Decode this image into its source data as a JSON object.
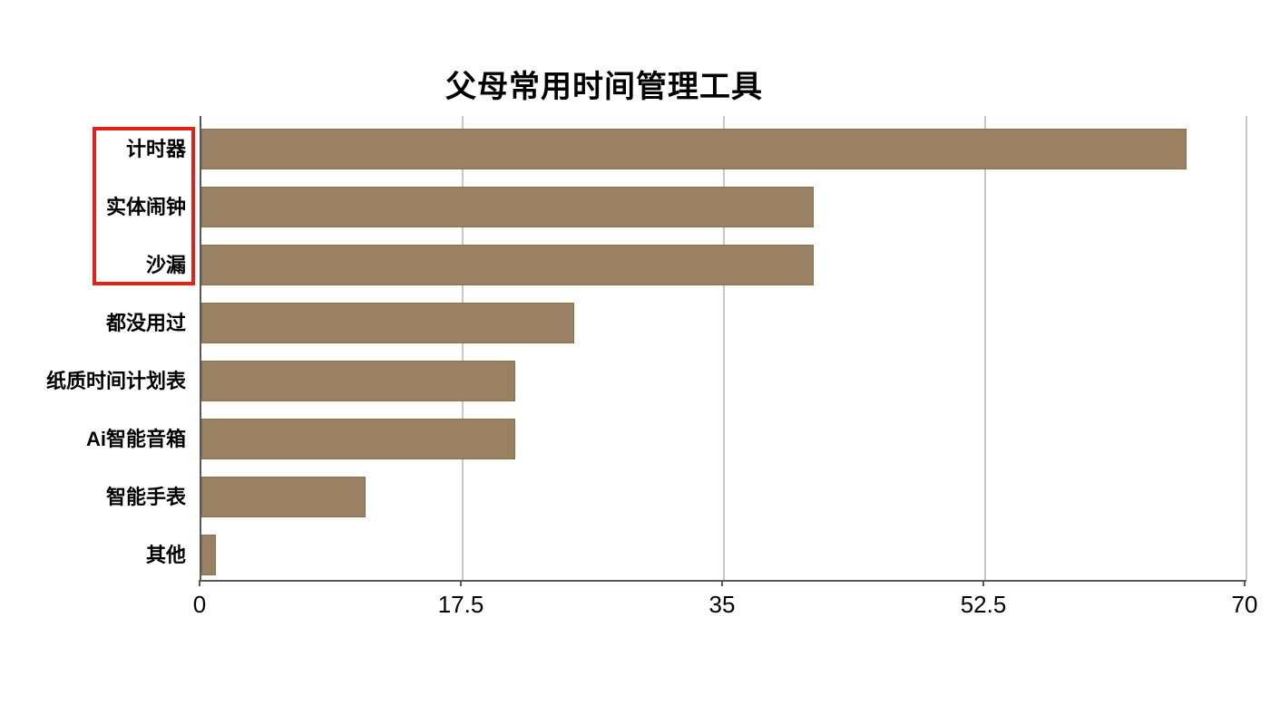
{
  "chart_data": {
    "type": "bar",
    "orientation": "horizontal",
    "title": "父母常用时间管理工具",
    "categories": [
      "计时器",
      "实体闹钟",
      "沙漏",
      "都没用过",
      "纸质时间计划表",
      "Ai智能音箱",
      "智能手表",
      "其他"
    ],
    "values": [
      66,
      41,
      41,
      25,
      21,
      21,
      11,
      1
    ],
    "xlabel": "",
    "ylabel": "",
    "xlim": [
      0,
      70
    ],
    "x_ticks": [
      0,
      17.5,
      35,
      52.5,
      70
    ],
    "x_tick_labels": [
      "0",
      "17.5",
      "35",
      "52.5",
      "70"
    ],
    "grid": true,
    "legend": false,
    "annotation": {
      "shape": "red-rectangle",
      "highlighted_categories": [
        "计时器",
        "实体闹钟",
        "沙漏"
      ]
    }
  },
  "colors": {
    "bar_fill": "#9a8164",
    "bar_edge": "#85704f",
    "gridline": "#c9c9c9",
    "axis": "#58585a",
    "highlight_red": "#e02318",
    "text": "#000000",
    "background": "#ffffff"
  }
}
